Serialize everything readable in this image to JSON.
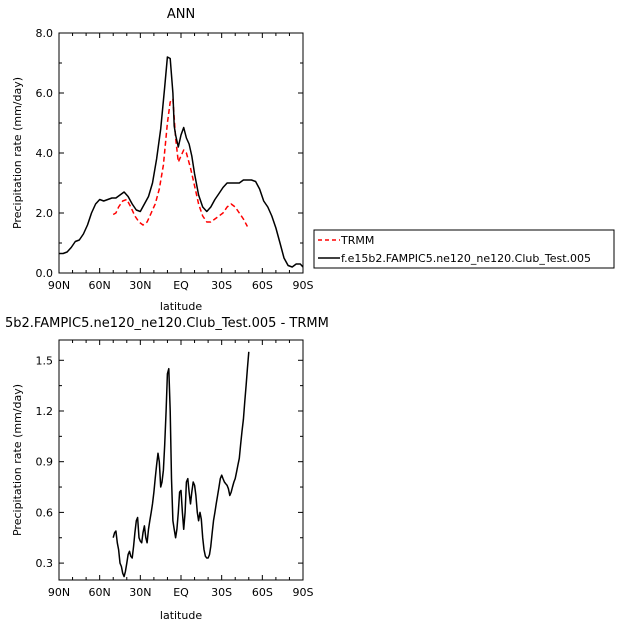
{
  "chart_data": [
    {
      "type": "line",
      "title": "ANN",
      "xlabel": "latitude",
      "ylabel": "Precipitation rate (mm/day)",
      "xlim": [
        90,
        -90
      ],
      "ylim": [
        0,
        8
      ],
      "xticks": [
        90,
        60,
        30,
        0,
        -30,
        -60,
        -90
      ],
      "xticklabels": [
        "90N",
        "60N",
        "30N",
        "EQ",
        "30S",
        "60S",
        "90S"
      ],
      "yticks": [
        0,
        2,
        4,
        6,
        8
      ],
      "yticklabels": [
        "0.0",
        "2.0",
        "4.0",
        "6.0",
        "8.0"
      ],
      "legend_placement": "outside-right",
      "series": [
        {
          "name": "TRMM",
          "color": "#ff0000",
          "dash": "dashed",
          "x": [
            50,
            48,
            46,
            43,
            40,
            37,
            34,
            31,
            28,
            25,
            22,
            19,
            16,
            13,
            10,
            8,
            6,
            4,
            2,
            0,
            -2,
            -4,
            -7,
            -10,
            -13,
            -16,
            -19,
            -22,
            -25,
            -28,
            -31,
            -34,
            -37,
            -40,
            -43,
            -46,
            -49
          ],
          "y": [
            1.95,
            2.0,
            2.2,
            2.4,
            2.45,
            2.2,
            1.9,
            1.7,
            1.6,
            1.7,
            2.0,
            2.3,
            2.8,
            3.6,
            5.0,
            5.7,
            5.8,
            4.5,
            3.7,
            3.9,
            4.1,
            4.0,
            3.5,
            2.9,
            2.3,
            1.9,
            1.7,
            1.7,
            1.8,
            1.9,
            2.0,
            2.2,
            2.3,
            2.2,
            2.0,
            1.8,
            1.55
          ]
        },
        {
          "name": "f.e15b2.FAMPIC5.ne120_ne120.Club_Test.005",
          "color": "#000000",
          "dash": "solid",
          "x": [
            90,
            87,
            84,
            81,
            78,
            75,
            72,
            69,
            66,
            63,
            60,
            57,
            54,
            51,
            48,
            45,
            42,
            39,
            36,
            33,
            30,
            27,
            24,
            21,
            18,
            15,
            12,
            10,
            8,
            6,
            5,
            4,
            2,
            0,
            -2,
            -4,
            -6,
            -8,
            -10,
            -13,
            -16,
            -19,
            -22,
            -25,
            -28,
            -31,
            -34,
            -37,
            -40,
            -43,
            -46,
            -49,
            -52,
            -55,
            -58,
            -61,
            -64,
            -67,
            -70,
            -73,
            -76,
            -79,
            -82,
            -85,
            -88,
            -90
          ],
          "y": [
            0.65,
            0.65,
            0.7,
            0.85,
            1.05,
            1.1,
            1.3,
            1.6,
            2.0,
            2.3,
            2.45,
            2.4,
            2.45,
            2.5,
            2.5,
            2.6,
            2.7,
            2.55,
            2.3,
            2.1,
            2.05,
            2.3,
            2.55,
            3.0,
            3.8,
            4.8,
            6.2,
            7.2,
            7.15,
            6.0,
            4.9,
            4.6,
            4.2,
            4.6,
            4.85,
            4.5,
            4.3,
            3.9,
            3.3,
            2.6,
            2.2,
            2.05,
            2.2,
            2.45,
            2.65,
            2.85,
            3.0,
            3.0,
            3.0,
            3.0,
            3.1,
            3.1,
            3.1,
            3.05,
            2.8,
            2.4,
            2.2,
            1.9,
            1.5,
            1.0,
            0.5,
            0.25,
            0.2,
            0.3,
            0.3,
            0.2
          ]
        }
      ]
    },
    {
      "type": "line",
      "title": "5b2.FAMPIC5.ne120_ne120.Club_Test.005 - TRMM",
      "xlabel": "latitude",
      "ylabel": "Precipitation rate (mm/day)",
      "xlim": [
        90,
        -90
      ],
      "ylim": [
        0.2,
        1.62
      ],
      "xticks": [
        90,
        60,
        30,
        0,
        -30,
        -60,
        -90
      ],
      "xticklabels": [
        "90N",
        "60N",
        "30N",
        "EQ",
        "30S",
        "60S",
        "90S"
      ],
      "yticks": [
        0.3,
        0.6,
        0.9,
        1.2,
        1.5
      ],
      "yticklabels": [
        "0.3",
        "0.6",
        "0.9",
        "1.2",
        "1.5"
      ],
      "series": [
        {
          "color": "#000000",
          "dash": "solid",
          "x": [
            50,
            49,
            48,
            47,
            46,
            45,
            44,
            43,
            42,
            41,
            40,
            39,
            38,
            37,
            36,
            35,
            34,
            33,
            32,
            31,
            30,
            29,
            28,
            27,
            26,
            25,
            24,
            23,
            22,
            21,
            20,
            19,
            18,
            17,
            16,
            15,
            14,
            13,
            12,
            11,
            10,
            9,
            8,
            7,
            6,
            5,
            4,
            3,
            2,
            1,
            0,
            -1,
            -2,
            -3,
            -4,
            -5,
            -6,
            -7,
            -8,
            -9,
            -10,
            -11,
            -12,
            -13,
            -14,
            -15,
            -16,
            -17,
            -18,
            -19,
            -20,
            -21,
            -22,
            -23,
            -24,
            -25,
            -26,
            -27,
            -28,
            -29,
            -30,
            -31,
            -32,
            -33,
            -34,
            -35,
            -36,
            -37,
            -38,
            -39,
            -40,
            -41,
            -42,
            -43,
            -44,
            -45,
            -46,
            -47,
            -48,
            -49,
            -50
          ],
          "y": [
            0.45,
            0.48,
            0.49,
            0.42,
            0.38,
            0.3,
            0.28,
            0.24,
            0.22,
            0.25,
            0.3,
            0.35,
            0.37,
            0.34,
            0.33,
            0.4,
            0.48,
            0.55,
            0.57,
            0.45,
            0.43,
            0.42,
            0.48,
            0.52,
            0.45,
            0.42,
            0.5,
            0.55,
            0.6,
            0.65,
            0.72,
            0.8,
            0.88,
            0.95,
            0.9,
            0.75,
            0.78,
            0.85,
            1.0,
            1.2,
            1.42,
            1.45,
            1.2,
            0.8,
            0.55,
            0.5,
            0.45,
            0.5,
            0.6,
            0.72,
            0.73,
            0.6,
            0.5,
            0.6,
            0.78,
            0.8,
            0.72,
            0.65,
            0.72,
            0.78,
            0.76,
            0.7,
            0.6,
            0.55,
            0.6,
            0.56,
            0.45,
            0.38,
            0.34,
            0.33,
            0.33,
            0.35,
            0.4,
            0.48,
            0.55,
            0.6,
            0.65,
            0.7,
            0.75,
            0.8,
            0.82,
            0.8,
            0.78,
            0.77,
            0.76,
            0.74,
            0.7,
            0.72,
            0.75,
            0.78,
            0.8,
            0.84,
            0.88,
            0.92,
            1.0,
            1.08,
            1.15,
            1.25,
            1.35,
            1.45,
            1.55
          ]
        }
      ]
    }
  ]
}
